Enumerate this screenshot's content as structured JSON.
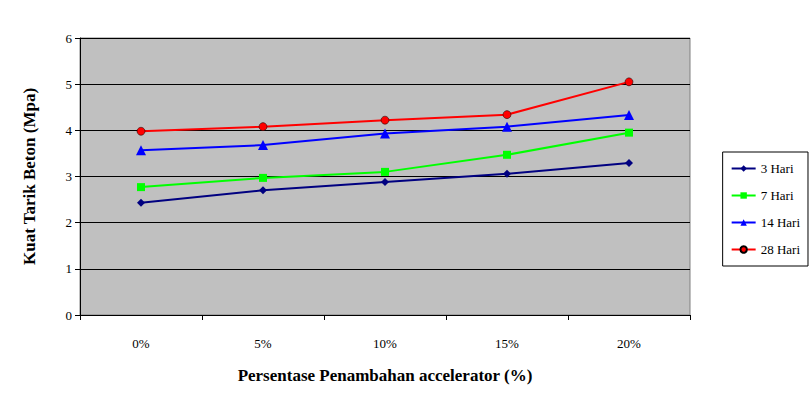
{
  "chart_data": {
    "type": "line",
    "x_label": "Persentase Penambahan accelerator (%)",
    "y_label": "Kuat Tarik Beton (Mpa)",
    "categories": [
      "0%",
      "5%",
      "10%",
      "15%",
      "20%"
    ],
    "series": [
      {
        "name": "3 Hari",
        "color": "#000080",
        "marker": "diamond",
        "values": [
          2.43,
          2.7,
          2.88,
          3.06,
          3.29
        ]
      },
      {
        "name": "7 Hari",
        "color": "#00ff00",
        "marker": "square",
        "values": [
          2.77,
          2.97,
          3.1,
          3.47,
          3.95
        ]
      },
      {
        "name": "14 Hari",
        "color": "#0000ff",
        "marker": "triangle",
        "values": [
          3.57,
          3.68,
          3.93,
          4.08,
          4.33
        ]
      },
      {
        "name": "28 Hari",
        "color": "#ff0000",
        "marker": "circle",
        "values": [
          3.98,
          4.08,
          4.22,
          4.34,
          5.05
        ]
      }
    ],
    "ylim": [
      0,
      6
    ],
    "yticks": [
      0,
      1,
      2,
      3,
      4,
      5,
      6
    ],
    "grid": true,
    "legend": "right",
    "line_style": "solid"
  }
}
